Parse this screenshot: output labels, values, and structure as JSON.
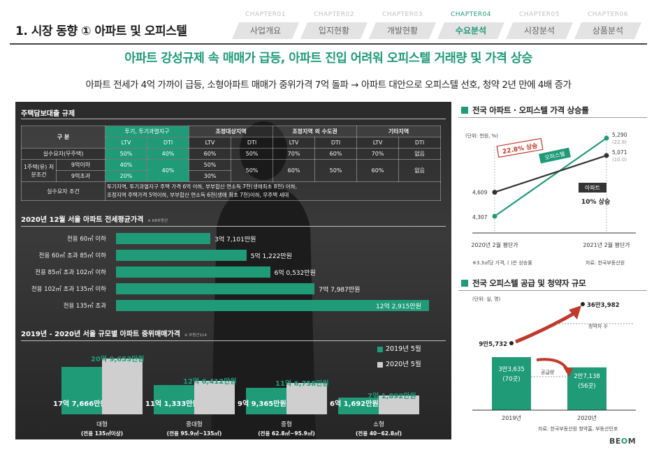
{
  "header": {
    "title": "1. 시장 동향 ① 아파트 및 오피스텔",
    "chapters": [
      {
        "no": "CHAPTER01",
        "label": "사업개요"
      },
      {
        "no": "CHAPTER02",
        "label": "입지현황"
      },
      {
        "no": "CHAPTER03",
        "label": "개발현황"
      },
      {
        "no": "CHAPTER04",
        "label": "수요분석"
      },
      {
        "no": "CHAPTER05",
        "label": "시장분석"
      },
      {
        "no": "CHAPTER06",
        "label": "상품분석"
      }
    ],
    "active_chapter": 3,
    "headline": "아파트 강성규제 속 매매가 급등, 아파트 진입 어려워 오피스텔 거래량 및 가격 상승",
    "subheadline": "아파트 전세가 4억 가까이 급등, 소형아파트 매매가 중위가격 7억 돌파 → 아파트 대안으로 오피스텔 선호, 청약 2년 만에 4배 증가"
  },
  "colors": {
    "accent": "#1f9b78",
    "dark_bg": "#2e2e2e",
    "arrow_red": "#c0392b",
    "light_bar": "#cfcfcf"
  },
  "regulation": {
    "title": "주택담보대출 규제",
    "h_gubun": "구 분",
    "groups": [
      "투기, 투기과열지구",
      "조정대상지역",
      "조정지역 외 수도권",
      "기타지역"
    ],
    "ltv": "LTV",
    "dti": "DTI",
    "rows": {
      "actual": {
        "label": "실수요자(무주택)",
        "vals": [
          "50%",
          "40%",
          "60%",
          "50%",
          "70%",
          "60%",
          "70%",
          "없음"
        ]
      },
      "one_home_label": "1주택(유) 처분조건",
      "sub9below": {
        "label": "9억이하",
        "ltv1": "40%",
        "ltv2": "50%"
      },
      "sub9above": {
        "label": "9억초과",
        "ltv1": "20%",
        "ltv2": "30%"
      },
      "merged": {
        "dti1": "40%",
        "dti2": "50%",
        "ltv3": "60%",
        "dti3": "50%",
        "ltv4": "60%",
        "dti4": "없음"
      }
    },
    "cond_label": "실수요자 조건",
    "cond_text1": "투기지역, 투기과열지구 주택 가격 6억 이하, 부부합산 연소득 7천(생애최초 8천) 이하,",
    "cond_text2": "조정지역 주택가격 5억이하, 부부합산 연소득 6천(생애 최초 7천)이하, 무주택 세대"
  },
  "jeonse": {
    "title": "2020년 12월 서울 아파트 전세평균가격",
    "source": "※ KB부동산"
  },
  "median": {
    "title": "2019년 - 2020년 서울 규모별 아파트 중위매매가격",
    "source": "※ 부동산114"
  },
  "right": {
    "price_title": "전국 아파트 · 오피스텔 가격 상승률",
    "price_unit": "(단위: 천원, %)",
    "price_x1": "2020년 2월 평단가",
    "price_x2": "2021년 2월 평단가",
    "price_note": "※3.3㎡당 가격, ( )은 상승률",
    "price_source": "자료: 한국부동산원",
    "officetel_label": "오피스텔",
    "apt_label": "아파트",
    "officetel_rise": "22.8% 상승",
    "apt_rise": "10% 상승",
    "officetel_pct": "(22.8)",
    "apt_pct": "(10.0)",
    "supply_title": "전국 오피스텔 공급 및 청약자 규모",
    "supply_unit": "(단위: 실, 명)",
    "applicant_label": "청약자 수",
    "supply_label": "공급량",
    "supply_source": "자료: 한국부동산원 청약홈, 부동산인포",
    "supply_2019_a": "3만3,635",
    "supply_2019_b": "(70곳)",
    "supply_2020_a": "2만7,138",
    "supply_2020_b": "(56곳)",
    "applicants_2019": "9만5,732",
    "applicants_2020": "36만3,982"
  },
  "logo": {
    "text1": "BE",
    "text2": "O",
    "text3": "M"
  },
  "chart_data": [
    {
      "type": "bar",
      "orientation": "horizontal",
      "title": "2020년 12월 서울 아파트 전세평균가격",
      "categories": [
        "전용 60㎡ 이하",
        "전용 60㎡ 초과 85㎡ 이하",
        "전용 85㎡ 초과 102㎡ 이하",
        "전용 102㎡ 초과 135㎡ 이하",
        "전용 135㎡ 초과"
      ],
      "values": [
        37101,
        51222,
        60532,
        77987,
        122915
      ],
      "value_labels": [
        "3억 7,101만원",
        "5억 1,222만원",
        "6억 0,532만원",
        "7억 7,987만원",
        "12억 2,915만원"
      ],
      "unit": "만원"
    },
    {
      "type": "bar",
      "title": "2019년 - 2020년 서울 규모별 아파트 중위매매가격",
      "categories": [
        "대형",
        "중대형",
        "중형",
        "소형"
      ],
      "category_sub": [
        "(전용 135㎡이상)",
        "(전용 95.9㎡~135㎡)",
        "(전용 62.8㎡~95.9㎡)",
        "(전용 40~62.8㎡)"
      ],
      "series": [
        {
          "name": "2019년 5월",
          "values": [
            177666,
            111333,
            99365,
            61692
          ],
          "labels": [
            "17억 7,666만원",
            "11억 1,333만원",
            "9억 9,365만원",
            "6억 1,692만원"
          ]
        },
        {
          "name": "2020년 5월",
          "values": [
            209653,
            126412,
            116758,
            71892
          ],
          "labels": [
            "20억 9,653만원",
            "12억 6,412만원",
            "11억 6,758만원",
            "7억 1,892만원"
          ]
        }
      ],
      "unit": "만원",
      "legend": "top-right"
    },
    {
      "type": "line",
      "title": "전국 아파트 · 오피스텔 가격 상승률",
      "categories": [
        "2020년 2월 평단가",
        "2021년 2월 평단가"
      ],
      "series": [
        {
          "name": "오피스텔",
          "values": [
            4307,
            5290
          ],
          "change_pct": 22.8
        },
        {
          "name": "아파트",
          "values": [
            4609,
            5071
          ],
          "change_pct": 10.0
        }
      ],
      "unit": "천원"
    },
    {
      "type": "bar",
      "title": "전국 오피스텔 공급 및 청약자 규모",
      "categories": [
        "2019년",
        "2020년"
      ],
      "series": [
        {
          "name": "공급량",
          "values": [
            33635,
            27138
          ],
          "sites": [
            70,
            56
          ]
        },
        {
          "name": "청약자 수",
          "values": [
            95732,
            363982
          ]
        }
      ],
      "unit": "실, 명"
    }
  ]
}
